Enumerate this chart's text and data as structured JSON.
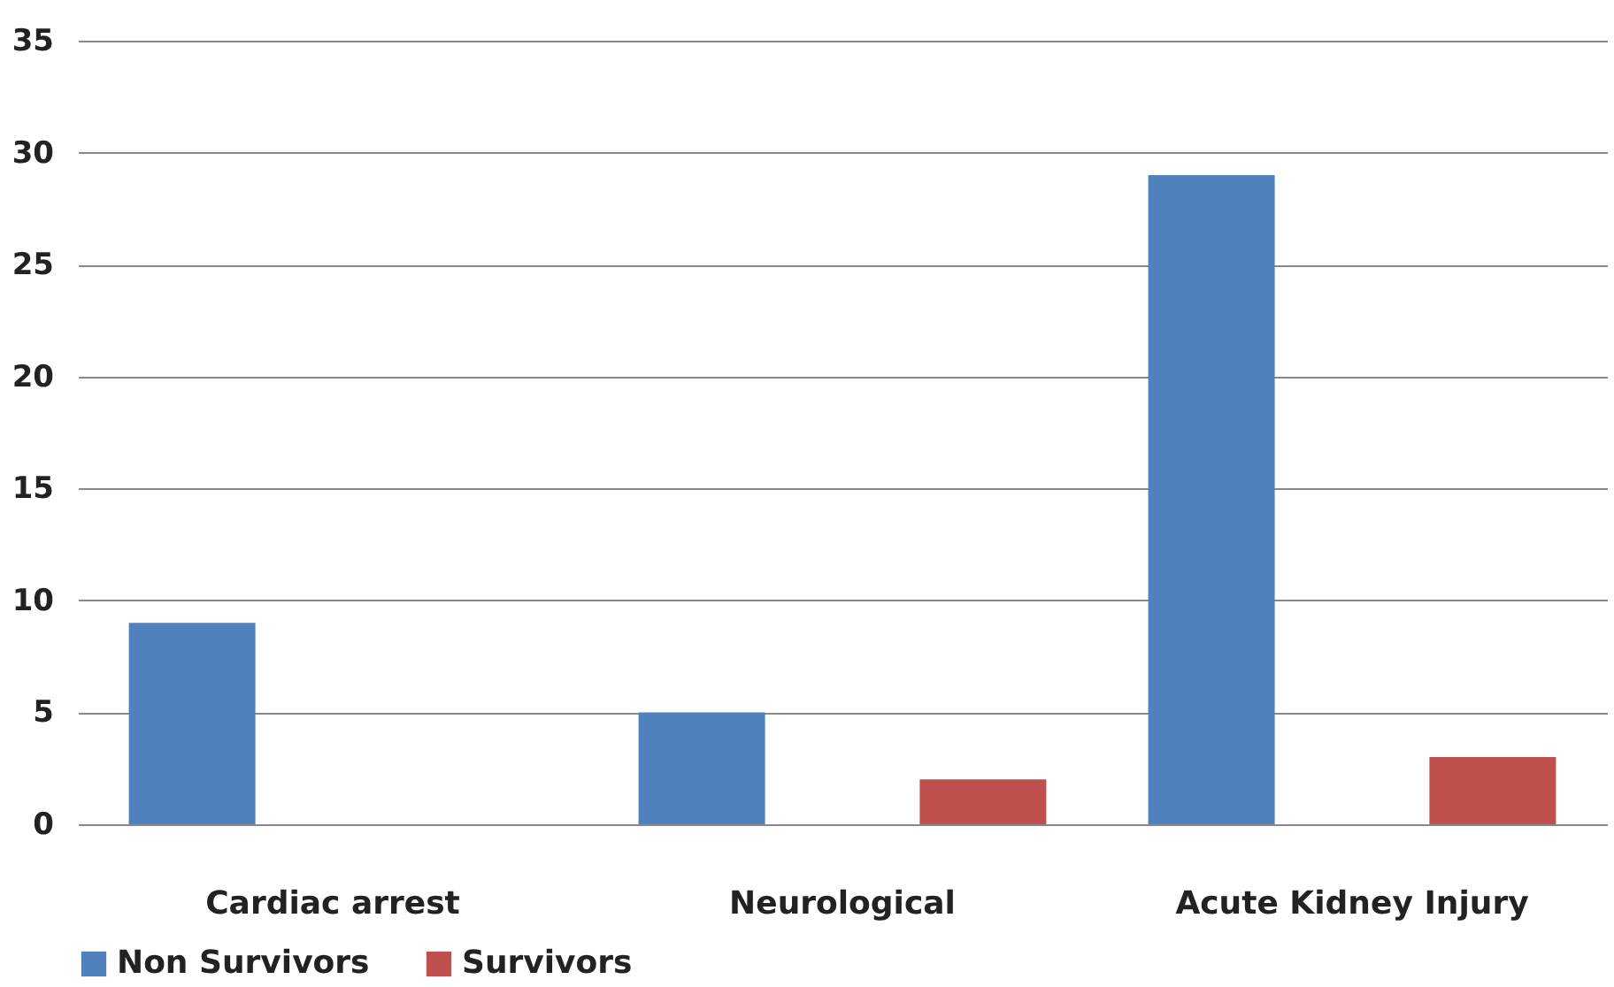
{
  "chart_data": {
    "type": "bar",
    "categories": [
      "Cardiac arrest",
      "Neurological",
      "Acute Kidney Injury"
    ],
    "series": [
      {
        "name": "Non Survivors",
        "color": "#4f81bd",
        "values": [
          9,
          5,
          29
        ]
      },
      {
        "name": "Survivors",
        "color": "#c0504d",
        "values": [
          0,
          2,
          3
        ]
      }
    ],
    "ylim": [
      0,
      35
    ],
    "yticks": [
      0,
      5,
      10,
      15,
      20,
      25,
      30,
      35
    ],
    "grid": "y",
    "legend": "bottom"
  }
}
